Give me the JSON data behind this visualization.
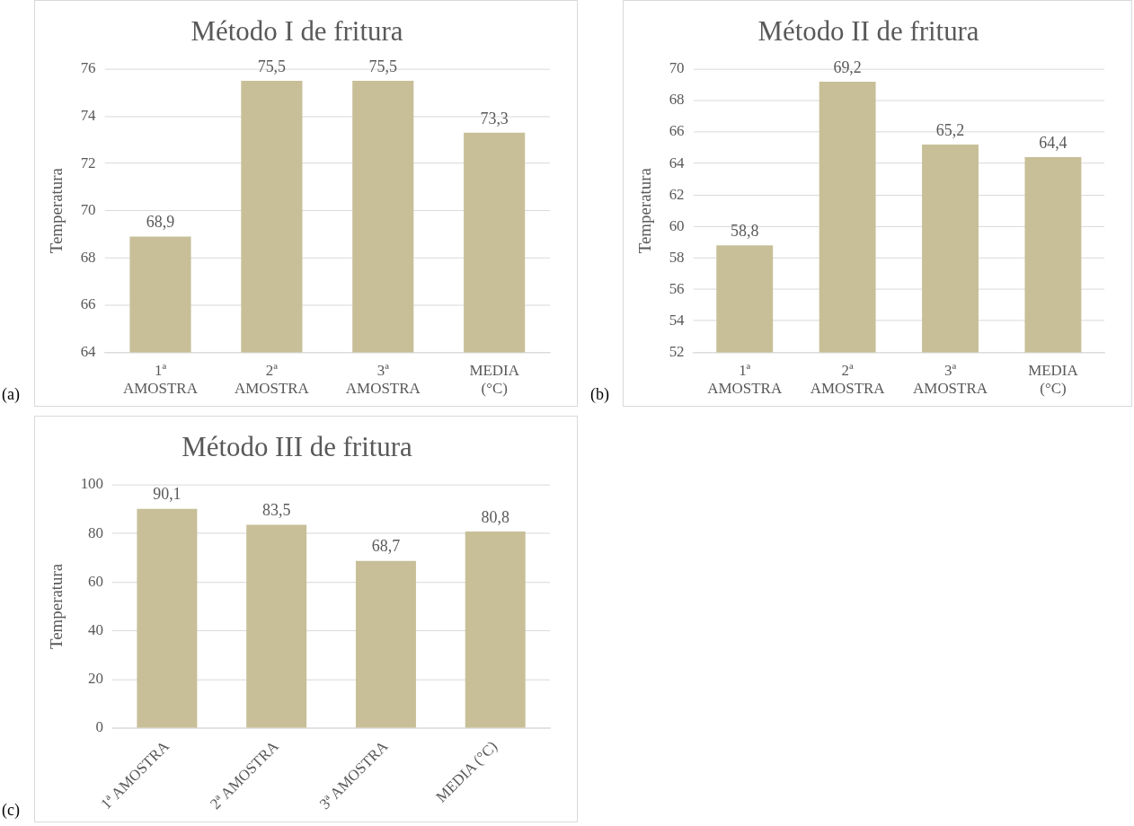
{
  "chart_data": [
    {
      "type": "bar",
      "title": "Método I de fritura",
      "ylabel": "Temperatura",
      "categories": [
        "1ª AMOSTRA",
        "2ª AMOSTRA",
        "3ª AMOSTRA",
        "MEDIA (°C)"
      ],
      "values": [
        68.9,
        75.5,
        75.5,
        73.3
      ],
      "value_labels": [
        "68,9",
        "75,5",
        "75,5",
        "73,3"
      ],
      "color": "#c8bf98",
      "ylim": [
        64,
        76
      ],
      "yticks": [
        64,
        66,
        68,
        70,
        72,
        74,
        76
      ],
      "grid": "y",
      "annotations": [
        "(a)"
      ]
    },
    {
      "type": "bar",
      "title": "Método II de fritura",
      "ylabel": "Temperatura",
      "categories": [
        "1ª AMOSTRA",
        "2ª AMOSTRA",
        "3ª AMOSTRA",
        "MEDIA (°C)"
      ],
      "values": [
        58.8,
        69.2,
        65.2,
        64.4
      ],
      "value_labels": [
        "58,8",
        "69,2",
        "65,2",
        "64,4"
      ],
      "color": "#c8bf98",
      "ylim": [
        52,
        70
      ],
      "yticks": [
        52,
        54,
        56,
        58,
        60,
        62,
        64,
        66,
        68,
        70
      ],
      "grid": "y",
      "annotations": [
        "(b)"
      ]
    },
    {
      "type": "bar",
      "title": "Método III de fritura",
      "ylabel": "Temperatura",
      "categories": [
        "1ª AMOSTRA",
        "2ª AMOSTRA",
        "3ª AMOSTRA",
        "MEDIA (°C)"
      ],
      "values": [
        90.1,
        83.5,
        68.7,
        80.8
      ],
      "value_labels": [
        "90,1",
        "83,5",
        "68,7",
        "80,8"
      ],
      "color": "#c8bf98",
      "ylim": [
        0,
        100
      ],
      "yticks": [
        0,
        20,
        40,
        60,
        80,
        100
      ],
      "grid": "y",
      "annotations": [
        "(c)"
      ]
    }
  ]
}
